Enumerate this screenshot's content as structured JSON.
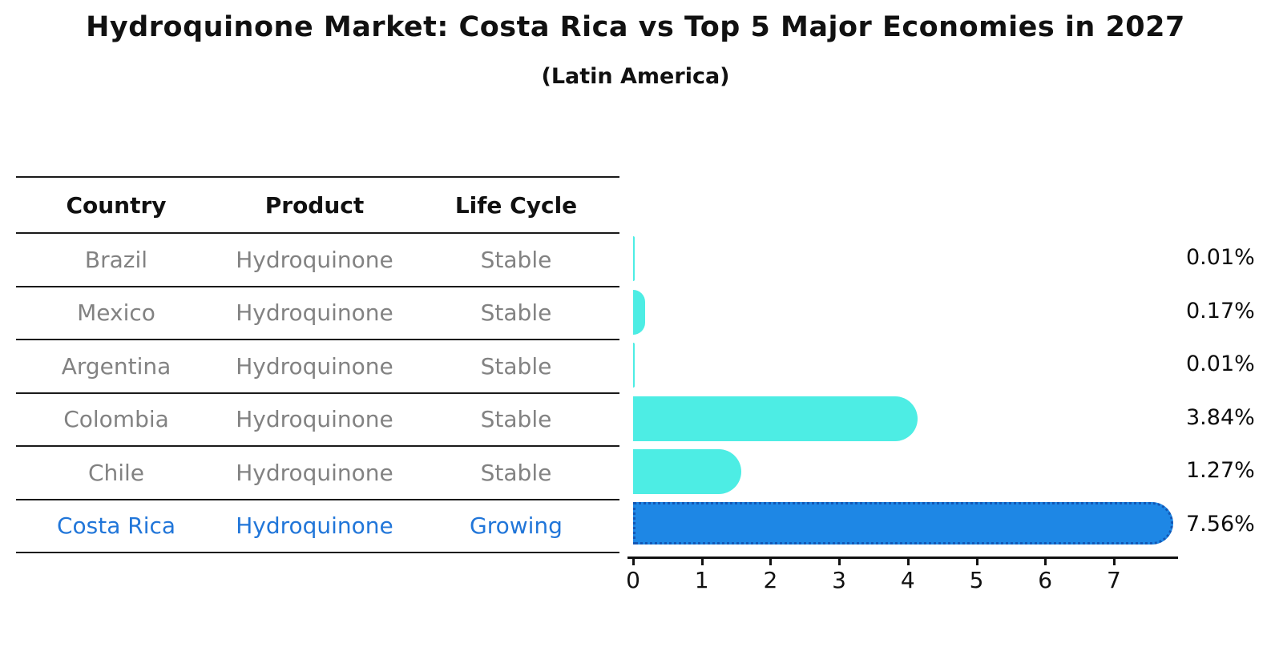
{
  "title": "Hydroquinone Market: Costa Rica vs Top 5 Major Economies in 2027",
  "subtitle": "(Latin America)",
  "table": {
    "headers": [
      "Country",
      "Product",
      "Life Cycle"
    ],
    "rows": [
      {
        "country": "Brazil",
        "product": "Hydroquinone",
        "life_cycle": "Stable",
        "highlighted": false
      },
      {
        "country": "Mexico",
        "product": "Hydroquinone",
        "life_cycle": "Stable",
        "highlighted": false
      },
      {
        "country": "Argentina",
        "product": "Hydroquinone",
        "life_cycle": "Stable",
        "highlighted": false
      },
      {
        "country": "Colombia",
        "product": "Hydroquinone",
        "life_cycle": "Stable",
        "highlighted": false
      },
      {
        "country": "Chile",
        "product": "Hydroquinone",
        "life_cycle": "Stable",
        "highlighted": false
      },
      {
        "country": "Costa Rica",
        "product": "Hydroquinone",
        "life_cycle": "Growing",
        "highlighted": true
      }
    ]
  },
  "chart_data": {
    "type": "bar",
    "orientation": "horizontal",
    "categories": [
      "Brazil",
      "Mexico",
      "Argentina",
      "Colombia",
      "Chile",
      "Costa Rica"
    ],
    "values": [
      0.01,
      0.17,
      0.01,
      3.84,
      1.27,
      7.56
    ],
    "value_labels": [
      "0.01%",
      "0.17%",
      "0.01%",
      "3.84%",
      "1.27%",
      "7.56%"
    ],
    "xticks": [
      0,
      1,
      2,
      3,
      4,
      5,
      6,
      7
    ],
    "xlim": [
      0,
      7.93
    ],
    "grid": false,
    "bar_color": "#4DEDE4",
    "highlight_index": 5,
    "highlight_bar_color": "#1E87E5",
    "highlight_border_color": "#1357B5",
    "highlight_text_color": "#2176D9",
    "axis_color": "#111111"
  }
}
